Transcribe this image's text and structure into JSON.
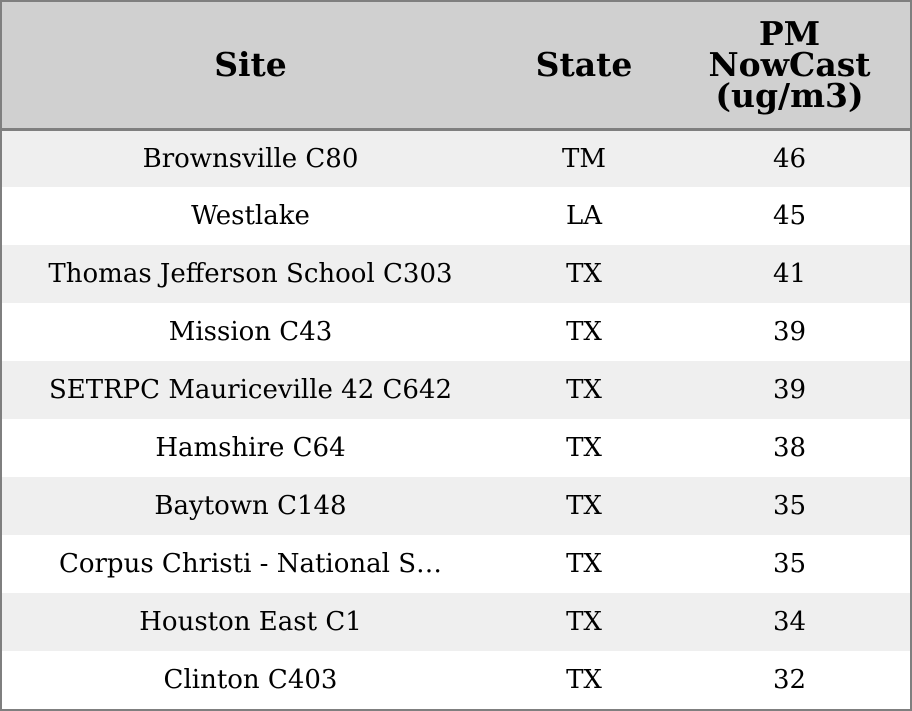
{
  "chart_data": {
    "type": "table",
    "columns": [
      "Site",
      "State",
      "PM NowCast (ug/m3)"
    ],
    "header_lines": {
      "site": [
        "Site"
      ],
      "state": [
        "State"
      ],
      "pm": [
        "PM",
        "NowCast",
        "(ug/m3)"
      ]
    },
    "rows": [
      {
        "site": "Brownsville C80",
        "state": "TM",
        "pm": 46
      },
      {
        "site": "Westlake",
        "state": "LA",
        "pm": 45
      },
      {
        "site": "Thomas Jefferson School C303",
        "state": "TX",
        "pm": 41
      },
      {
        "site": "Mission C43",
        "state": "TX",
        "pm": 39
      },
      {
        "site": "SETRPC Mauriceville 42 C642",
        "state": "TX",
        "pm": 39
      },
      {
        "site": "Hamshire C64",
        "state": "TX",
        "pm": 38
      },
      {
        "site": "Baytown C148",
        "state": "TX",
        "pm": 35
      },
      {
        "site": "Corpus Christi - National S…",
        "state": "TX",
        "pm": 35
      },
      {
        "site": "Houston East C1",
        "state": "TX",
        "pm": 34
      },
      {
        "site": "Clinton C403",
        "state": "TX",
        "pm": 32
      }
    ],
    "colors": {
      "header_bg": "#d0d0d0",
      "row_alt_bg": "#efefef",
      "row_bg": "#ffffff",
      "border": "#7f7f7f"
    }
  }
}
